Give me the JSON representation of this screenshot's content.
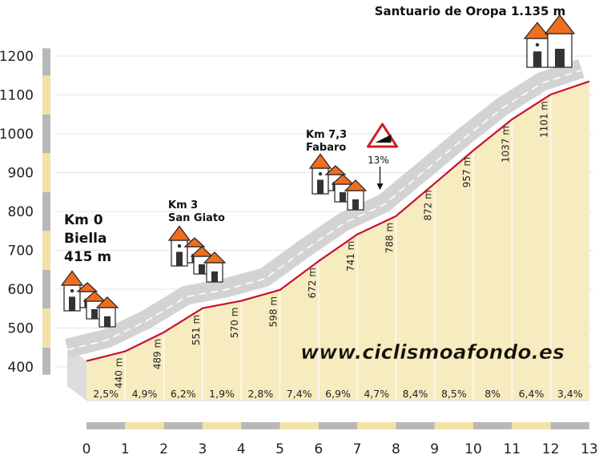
{
  "chart_data": {
    "type": "area",
    "title": "Santuario de Oropa 1.135 m",
    "x": [
      0,
      1,
      2,
      3,
      4,
      5,
      6,
      7,
      8,
      9,
      10,
      11,
      12,
      13
    ],
    "x_tick_labels": [
      "0",
      "1",
      "2",
      "3",
      "4",
      "5",
      "6",
      "7",
      "8",
      "9",
      "10",
      "11",
      "12",
      "13"
    ],
    "altitudes": [
      415,
      440,
      489,
      551,
      570,
      598,
      672,
      741,
      788,
      872,
      957,
      1037,
      1101,
      1135
    ],
    "point_labels": [
      "440 m",
      "489 m",
      "551 m",
      "570 m",
      "598 m",
      "672 m",
      "741 m",
      "788 m",
      "872 m",
      "957 m",
      "1037 m",
      "1101 m"
    ],
    "gradients": [
      "2,5%",
      "4,9%",
      "6,2%",
      "1,9%",
      "2,8%",
      "7,4%",
      "6,9%",
      "4,7%",
      "8,4%",
      "8,5%",
      "8%",
      "6,4%",
      "3,4%"
    ],
    "y_ticks": [
      400,
      500,
      600,
      700,
      800,
      900,
      1000,
      1100,
      1200
    ],
    "y_tick_labels": [
      "400",
      "500",
      "600",
      "700",
      "800",
      "900",
      "1000",
      "1100",
      "1200"
    ],
    "ylim": [
      380,
      1220
    ],
    "xlim": [
      0,
      13
    ],
    "max_gradient": {
      "label": "13%",
      "km": 7.65
    },
    "waypoints": [
      {
        "km": 0,
        "lines": [
          "Km 0",
          "Biella",
          "415 m"
        ]
      },
      {
        "km": 3,
        "lines": [
          "Km 3",
          "San Giato"
        ]
      },
      {
        "km": 7.3,
        "lines": [
          "Km 7,3",
          "Fabaro"
        ]
      },
      {
        "km": 12.3,
        "lines": []
      }
    ],
    "watermark": "www.ciclismoafondo.es",
    "colors": {
      "profile_line": "#c8102e",
      "area_fill": "#f7ebc0",
      "road": "#d3d3d3",
      "axis_gray": "#b8b8b8",
      "axis_cream": "#f3e2a8",
      "house_roof": "#ee6f1f",
      "watermark": "#111111"
    }
  }
}
